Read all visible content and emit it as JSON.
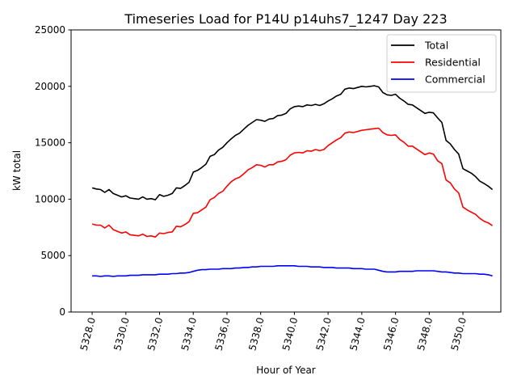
{
  "chart_data": {
    "type": "line",
    "title": "Timeseries Load for P14U p14uhs7_1247  Day 223",
    "xlabel": "Hour of Year",
    "ylabel": "kW total",
    "xlim": [
      5326.75,
      5352.25
    ],
    "ylim": [
      0,
      25000
    ],
    "x_ticks": [
      "5328.0",
      "5330.0",
      "5332.0",
      "5334.0",
      "5336.0",
      "5338.0",
      "5340.0",
      "5342.0",
      "5344.0",
      "5346.0",
      "5348.0",
      "5350.0"
    ],
    "y_ticks": [
      "0",
      "5000",
      "10000",
      "15000",
      "20000",
      "25000"
    ],
    "x_start": 5328.0,
    "x_step": 0.25,
    "legend_position": "upper-right",
    "series": [
      {
        "name": "Total",
        "color": "#000000",
        "values": [
          11000,
          10900,
          10850,
          10600,
          10850,
          10500,
          10350,
          10200,
          10300,
          10100,
          10050,
          10000,
          10200,
          10000,
          10050,
          9950,
          10400,
          10250,
          10350,
          10500,
          11000,
          10950,
          11200,
          11500,
          12400,
          12550,
          12800,
          13100,
          13800,
          13950,
          14350,
          14600,
          15000,
          15350,
          15650,
          15850,
          16200,
          16550,
          16800,
          17050,
          17000,
          16900,
          17100,
          17150,
          17400,
          17450,
          17600,
          18000,
          18200,
          18250,
          18200,
          18350,
          18300,
          18400,
          18300,
          18450,
          18700,
          18900,
          19150,
          19300,
          19750,
          19850,
          19800,
          19900,
          20000,
          19950,
          20000,
          20050,
          19950,
          19450,
          19250,
          19200,
          19300,
          18950,
          18700,
          18400,
          18350,
          18100,
          17850,
          17600,
          17700,
          17650,
          17200,
          16800,
          15200,
          14900,
          14400,
          14000,
          12700,
          12500,
          12300,
          12000,
          11600,
          11400,
          11150,
          10850
        ]
      },
      {
        "name": "Residential",
        "color": "#ff0000",
        "values": [
          7800,
          7700,
          7700,
          7450,
          7700,
          7300,
          7150,
          7000,
          7100,
          6850,
          6800,
          6750,
          6900,
          6700,
          6750,
          6650,
          7000,
          6950,
          7050,
          7100,
          7600,
          7550,
          7750,
          8000,
          8750,
          8800,
          9050,
          9300,
          9950,
          10150,
          10500,
          10700,
          11150,
          11550,
          11800,
          11950,
          12250,
          12600,
          12800,
          13050,
          13000,
          12850,
          13050,
          13050,
          13300,
          13350,
          13500,
          13900,
          14100,
          14150,
          14100,
          14300,
          14250,
          14400,
          14300,
          14400,
          14750,
          15000,
          15250,
          15450,
          15850,
          15950,
          15900,
          16000,
          16100,
          16150,
          16200,
          16250,
          16300,
          15900,
          15700,
          15650,
          15700,
          15300,
          15050,
          14700,
          14700,
          14450,
          14200,
          13950,
          14100,
          14000,
          13400,
          13150,
          11700,
          11450,
          10900,
          10550,
          9300,
          9050,
          8850,
          8650,
          8300,
          8050,
          7900,
          7650
        ]
      },
      {
        "name": "Commercial",
        "color": "#0000ff",
        "values": [
          3200,
          3200,
          3150,
          3200,
          3200,
          3150,
          3200,
          3200,
          3200,
          3250,
          3250,
          3250,
          3300,
          3300,
          3300,
          3300,
          3350,
          3350,
          3350,
          3400,
          3400,
          3450,
          3450,
          3500,
          3600,
          3700,
          3750,
          3750,
          3800,
          3800,
          3800,
          3850,
          3850,
          3850,
          3900,
          3900,
          3950,
          3950,
          4000,
          4000,
          4050,
          4050,
          4050,
          4050,
          4100,
          4100,
          4100,
          4100,
          4100,
          4050,
          4050,
          4050,
          4000,
          4000,
          4000,
          3950,
          3950,
          3950,
          3900,
          3900,
          3900,
          3900,
          3850,
          3850,
          3850,
          3800,
          3800,
          3800,
          3700,
          3600,
          3550,
          3550,
          3550,
          3600,
          3600,
          3600,
          3600,
          3650,
          3650,
          3650,
          3650,
          3650,
          3600,
          3550,
          3550,
          3500,
          3450,
          3450,
          3400,
          3400,
          3400,
          3400,
          3350,
          3350,
          3300,
          3200
        ]
      }
    ]
  }
}
